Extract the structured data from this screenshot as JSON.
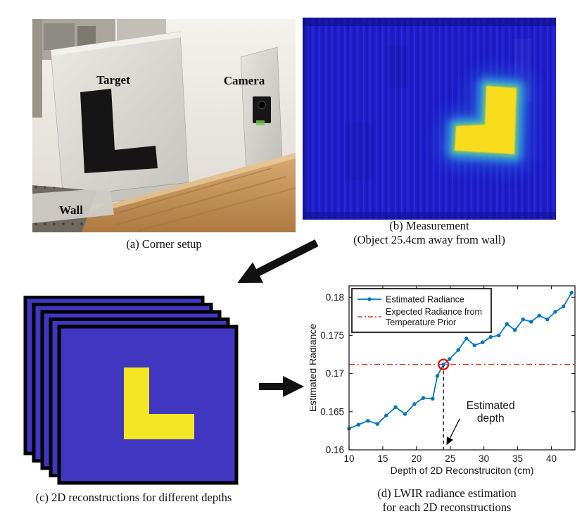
{
  "panel_a": {
    "caption": "(a) Corner setup",
    "labels": {
      "target": "Target",
      "camera": "Camera",
      "wall": "Wall"
    }
  },
  "panel_b": {
    "caption_line1": "(b) Measurement",
    "caption_line2": "(Object 25.4cm away from wall)"
  },
  "panel_c": {
    "caption": "(c) 2D reconstructions for different depths"
  },
  "panel_d": {
    "caption_line1": "(d) LWIR radiance estimation",
    "caption_line2": "for each 2D reconstructions"
  },
  "chart_data": {
    "type": "line",
    "title": "",
    "xlabel": "Depth of 2D Reconstruciton (cm)",
    "ylabel": "Estimated Radiance",
    "xlim": [
      10,
      43.5
    ],
    "ylim": [
      0.16,
      0.1815
    ],
    "xticks": [
      10,
      15,
      20,
      25,
      30,
      35,
      40
    ],
    "yticks": [
      0.16,
      0.165,
      0.17,
      0.175,
      0.18
    ],
    "ytick_labels": [
      "0.16",
      "0.165",
      "0.17",
      "0.175",
      "0.18"
    ],
    "grid": false,
    "legend_position": "top-left",
    "series": [
      {
        "name": "Estimated Radiance",
        "type": "line-dot",
        "color": "#0072BD",
        "x": [
          10,
          11.4,
          12.8,
          14.2,
          15.5,
          16.9,
          18.3,
          19.7,
          21,
          22.4,
          23.1,
          24,
          24.9,
          26.2,
          27.4,
          28.6,
          29.8,
          31,
          32.2,
          33.4,
          34.6,
          35.8,
          37,
          38.2,
          39.4,
          40.6,
          41.8,
          43
        ],
        "y": [
          0.1628,
          0.1633,
          0.1638,
          0.1634,
          0.1645,
          0.1656,
          0.1647,
          0.166,
          0.1668,
          0.1667,
          0.1697,
          0.1712,
          0.1719,
          0.1731,
          0.1746,
          0.1737,
          0.1741,
          0.1748,
          0.175,
          0.1765,
          0.1757,
          0.1771,
          0.1768,
          0.1776,
          0.1771,
          0.1781,
          0.1788,
          0.1806
        ]
      },
      {
        "name": "Expected Radiance from Temperature Prior",
        "type": "hline",
        "style": "dash-dot",
        "color": "#D2401E",
        "y": 0.1712
      }
    ],
    "legend_entries": [
      {
        "lines": [
          "Estimated Radiance"
        ],
        "color": "#0072BD",
        "style": "line-dot"
      },
      {
        "lines": [
          "Expected Radiance from",
          "Temperature Prior"
        ],
        "color": "#D2401E",
        "style": "dash-dot"
      }
    ],
    "highlight_point": {
      "x": 24,
      "y": 0.1712,
      "color": "#E60000"
    },
    "depth_marker": {
      "x": 24,
      "from_y": 0.1712,
      "style": "dashed",
      "color": "#000000"
    },
    "annotation": {
      "lines": [
        "Estimated",
        "depth"
      ],
      "anchor_x": 31.0,
      "anchor_y": 0.165,
      "arrow_tip_x": 24.5,
      "arrow_tip_y": 0.1607
    }
  },
  "colors": {
    "matlab_blue": "#0072BD",
    "prior_line_red": "#D2401E",
    "highlight_red": "#E60000",
    "reconstruction_indigo": "#4036C0",
    "reconstruction_yellow": "#F4E623",
    "thermal_background_blue": "#1E1ECB",
    "thermal_hot_yellow": "#F8DC1C",
    "thermal_halo_cyan": "#46C8EA"
  }
}
